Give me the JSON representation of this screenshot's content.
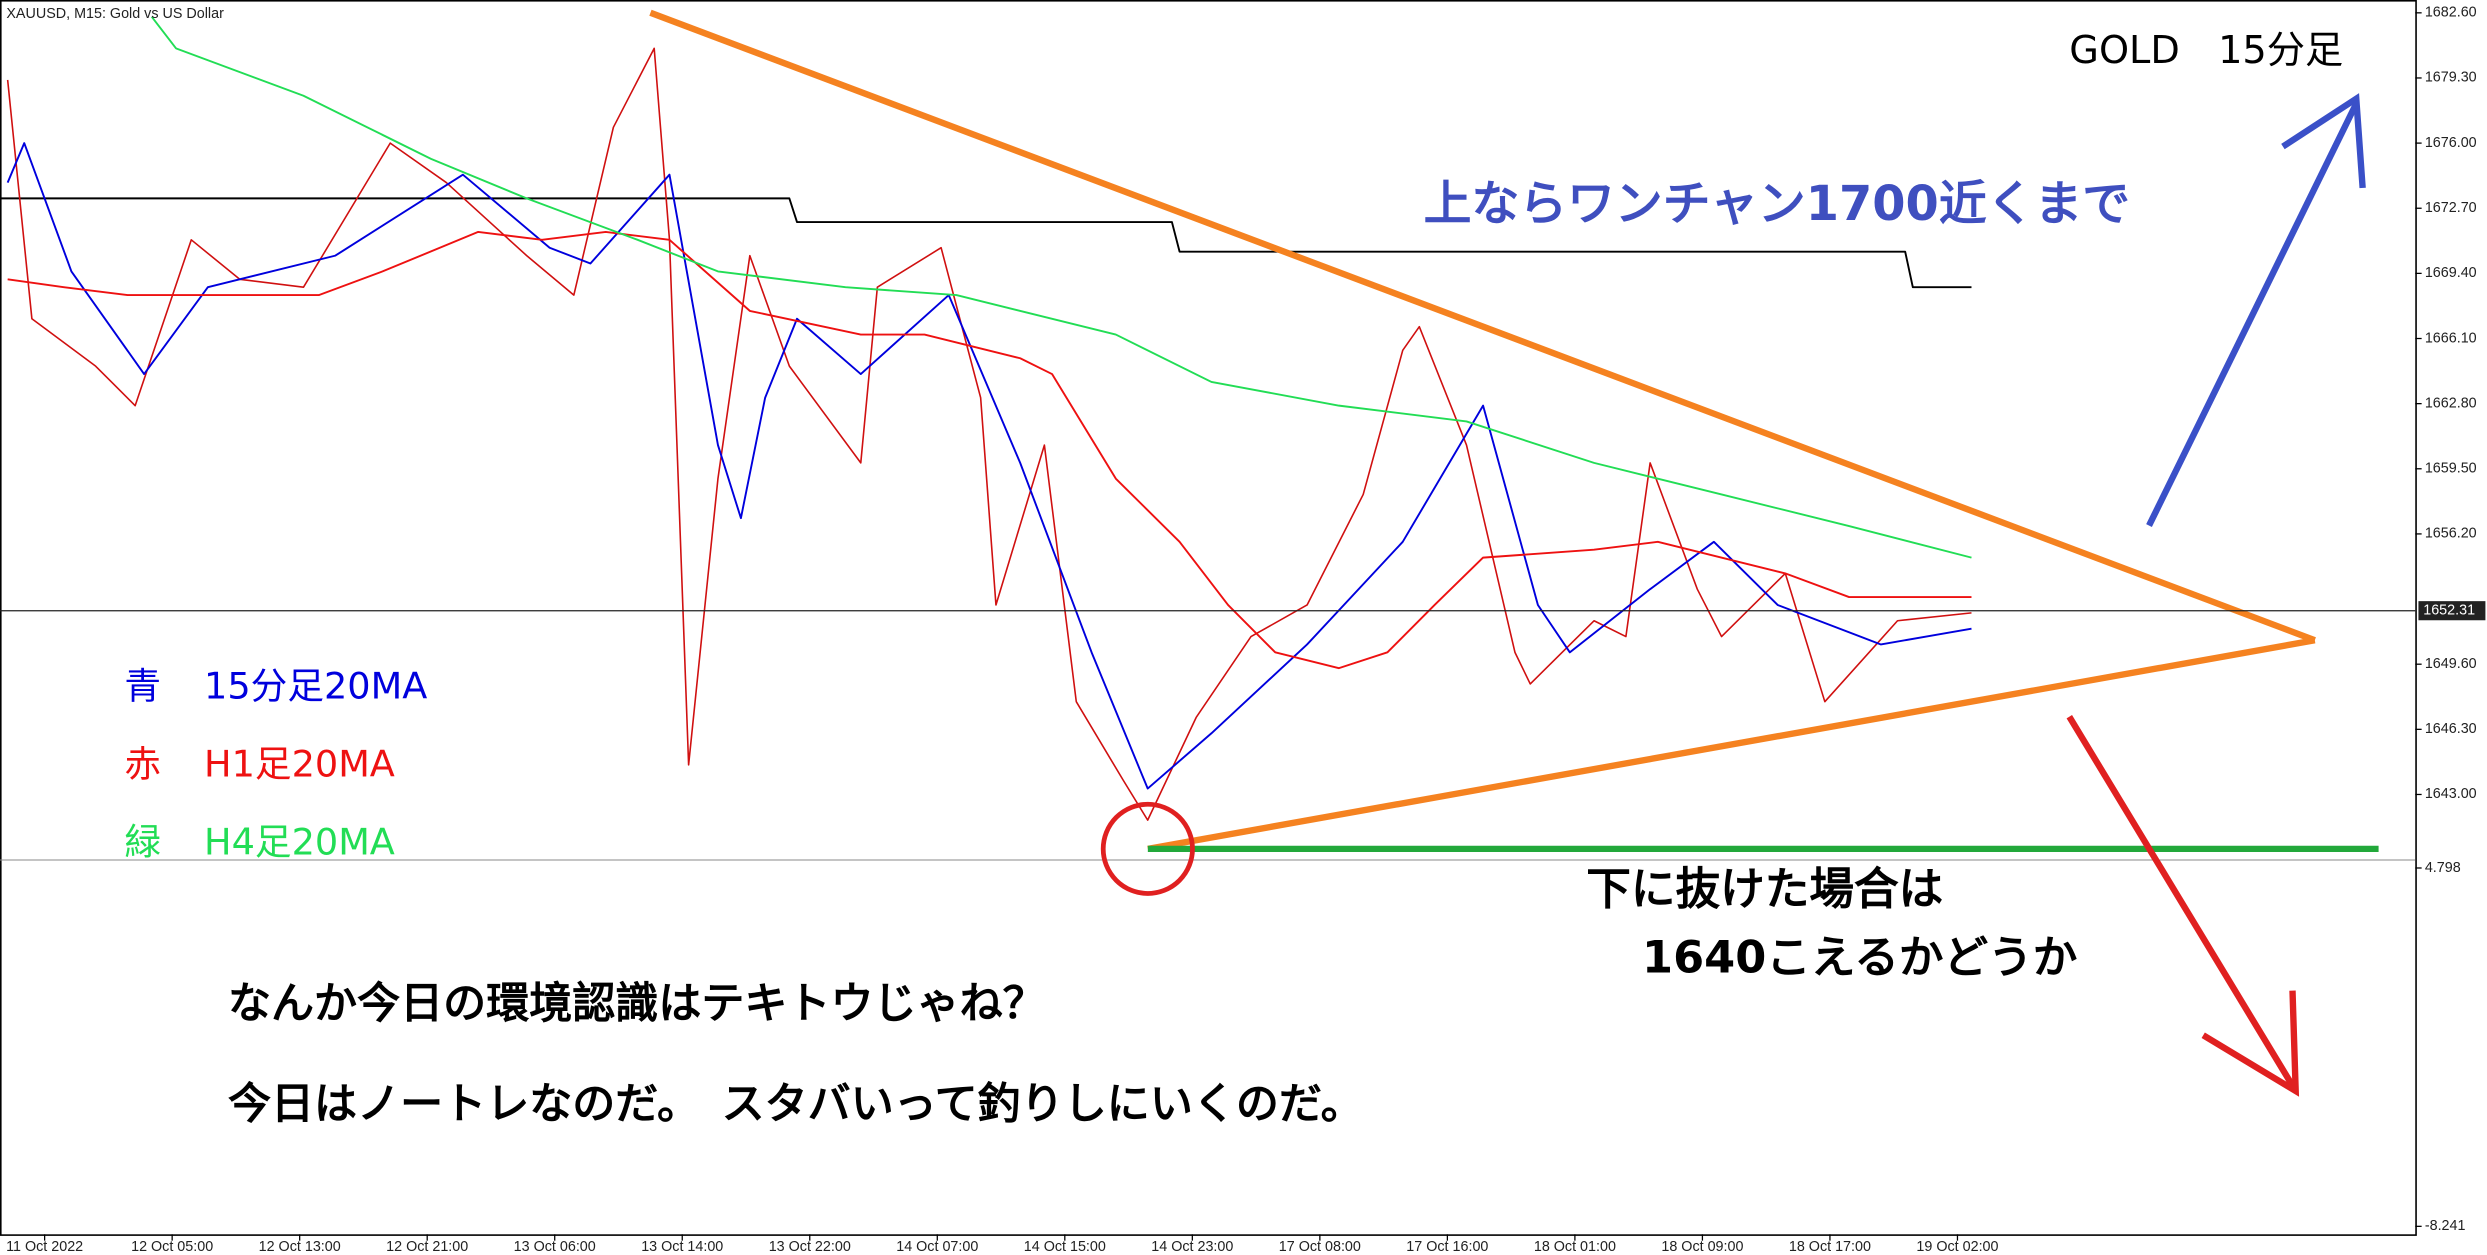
{
  "chart_data": {
    "type": "line",
    "header": "XAUUSD, M15:  Gold vs US Dollar",
    "title": "GOLD　15分足",
    "categories": [
      "11 Oct 2022",
      "12 Oct 05:00",
      "12 Oct 13:00",
      "12 Oct 21:00",
      "13 Oct 06:00",
      "13 Oct 14:00",
      "13 Oct 22:00",
      "14 Oct 07:00",
      "14 Oct 15:00",
      "14 Oct 23:00",
      "17 Oct 08:00",
      "17 Oct 16:00",
      "18 Oct 01:00",
      "18 Oct 09:00",
      "18 Oct 17:00",
      "19 Oct 02:00"
    ],
    "xlim": [
      -0.35,
      18.59
    ],
    "ylim": [
      1639.84,
      1683.25
    ],
    "yticks": [
      {
        "value": 1682.6,
        "label": "1682.60"
      },
      {
        "value": 1679.3,
        "label": "1679.30"
      },
      {
        "value": 1676.0,
        "label": "1676.00"
      },
      {
        "value": 1672.7,
        "label": "1672.70"
      },
      {
        "value": 1669.4,
        "label": "1669.40"
      },
      {
        "value": 1666.1,
        "label": "1666.10"
      },
      {
        "value": 1662.8,
        "label": "1662.80"
      },
      {
        "value": 1659.5,
        "label": "1659.50"
      },
      {
        "value": 1656.2,
        "label": "1656.20"
      },
      {
        "value": 1649.6,
        "label": "1649.60"
      },
      {
        "value": 1646.3,
        "label": "1646.30"
      },
      {
        "value": 1643.0,
        "label": "1643.00"
      }
    ],
    "current_price": 1652.31,
    "y2lim": [
      -8.241,
      4.798
    ],
    "y2ticks": [
      4.798,
      -8.241
    ],
    "price": {
      "color": "#d01010",
      "x": [
        -0.29,
        -0.1,
        0.4,
        0.71,
        1.15,
        1.53,
        2.03,
        2.71,
        3.15,
        3.78,
        4.15,
        4.46,
        4.78,
        4.9,
        5.05,
        5.28,
        5.53,
        5.84,
        6.4,
        6.53,
        7.03,
        7.34,
        7.46,
        7.84,
        8.09,
        8.46,
        8.65,
        9.03,
        9.46,
        9.9,
        10.34,
        10.65,
        10.78,
        11.15,
        11.53,
        11.65,
        12.15,
        12.4,
        12.59,
        12.96,
        13.15,
        13.65,
        13.96,
        14.53,
        15.11
      ],
      "values": [
        1679.2,
        1667.1,
        1664.7,
        1662.7,
        1671.1,
        1669.1,
        1668.7,
        1676.0,
        1674.0,
        1670.3,
        1668.3,
        1676.8,
        1680.8,
        1671.1,
        1644.5,
        1659.0,
        1670.3,
        1664.7,
        1659.8,
        1668.7,
        1670.7,
        1663.1,
        1652.6,
        1660.7,
        1647.7,
        1643.7,
        1641.7,
        1646.9,
        1651.0,
        1652.6,
        1658.2,
        1665.5,
        1666.7,
        1660.7,
        1650.2,
        1648.6,
        1651.8,
        1651.0,
        1659.8,
        1653.4,
        1651.0,
        1654.2,
        1647.7,
        1651.8,
        1652.2
      ]
    },
    "daily": {
      "color": "#000000",
      "x": [
        -0.35,
        5.84,
        5.9,
        8.84,
        8.9,
        14.59,
        14.65,
        15.11
      ],
      "values": [
        1673.2,
        1673.2,
        1672.0,
        1672.0,
        1670.5,
        1670.5,
        1668.7,
        1668.7
      ]
    },
    "series": [
      {
        "key": "青",
        "name": "15分足20MA",
        "color": "#0000dd",
        "x": [
          -0.29,
          -0.16,
          0.21,
          0.78,
          1.28,
          2.28,
          3.28,
          3.96,
          4.28,
          4.9,
          5.28,
          5.46,
          5.65,
          5.9,
          6.4,
          7.09,
          7.65,
          8.21,
          8.65,
          9.15,
          9.9,
          10.65,
          11.28,
          11.71,
          11.96,
          12.59,
          13.09,
          13.59,
          14.4,
          15.11
        ],
        "values": [
          1674.0,
          1676.0,
          1669.5,
          1664.3,
          1668.7,
          1670.3,
          1674.4,
          1670.7,
          1669.9,
          1674.4,
          1660.7,
          1657.0,
          1663.1,
          1667.1,
          1664.3,
          1668.3,
          1659.8,
          1650.2,
          1643.3,
          1646.1,
          1650.6,
          1655.8,
          1662.7,
          1652.6,
          1650.2,
          1653.4,
          1655.8,
          1652.6,
          1650.6,
          1651.4
        ]
      },
      {
        "key": "赤",
        "name": "H1足20MA",
        "color": "#ee1111",
        "x": [
          -0.29,
          0.15,
          0.65,
          2.15,
          2.65,
          3.4,
          3.9,
          4.4,
          4.9,
          5.53,
          6.4,
          6.9,
          7.65,
          7.9,
          8.4,
          8.9,
          9.28,
          9.65,
          10.15,
          10.53,
          10.9,
          11.28,
          12.15,
          12.65,
          13.65,
          14.15,
          15.11
        ],
        "values": [
          1669.1,
          1668.7,
          1668.3,
          1668.3,
          1669.5,
          1671.5,
          1671.1,
          1671.5,
          1671.1,
          1667.5,
          1666.3,
          1666.3,
          1665.1,
          1664.3,
          1659.0,
          1655.8,
          1652.6,
          1650.2,
          1649.4,
          1650.2,
          1652.6,
          1655.0,
          1655.4,
          1655.8,
          1654.2,
          1653.0,
          1653.0
        ]
      },
      {
        "key": "緑",
        "name": "H4足20MA",
        "color": "#22dd55",
        "x": [
          0.84,
          1.03,
          2.03,
          3.03,
          3.78,
          4.65,
          5.28,
          6.28,
          7.15,
          8.4,
          9.15,
          10.15,
          11.15,
          12.15,
          13.15,
          14.15,
          15.11
        ],
        "values": [
          1682.4,
          1680.8,
          1678.4,
          1675.2,
          1673.2,
          1671.1,
          1669.5,
          1668.7,
          1668.3,
          1666.3,
          1663.9,
          1662.7,
          1661.9,
          1659.8,
          1658.2,
          1656.6,
          1655.0
        ]
      }
    ],
    "annotations": {
      "upside": "上ならワンチャン1700近くまで",
      "downside_1": "下に抜けた場合は",
      "downside_2": "1640こえるかどうか",
      "comment_1": "なんか今日の環境認識はテキトウじゃね？",
      "comment_2": "今日はノートレなのだ。　スタバいって釣りしにいくのだ。"
    }
  }
}
